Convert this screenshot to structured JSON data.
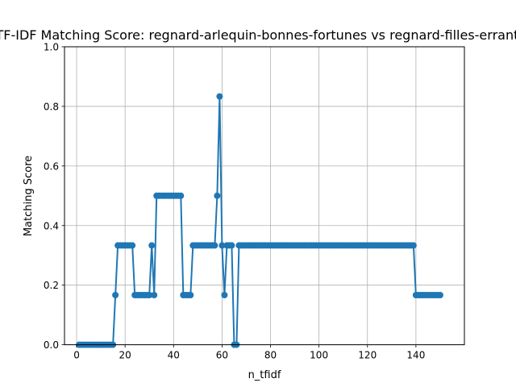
{
  "chart_data": {
    "type": "line",
    "title": "TF-IDF Matching Score: regnard-arlequin-bonnes-fortunes vs regnard-filles-errantes",
    "xlabel": "n_tfidf",
    "ylabel": "Matching Score",
    "xlim": [
      -5,
      160
    ],
    "ylim": [
      0,
      1
    ],
    "xticks": [
      0,
      20,
      40,
      60,
      80,
      100,
      120,
      140
    ],
    "yticks": [
      0.0,
      0.2,
      0.4,
      0.6,
      0.8,
      1.0
    ],
    "xtick_labels": [
      "0",
      "20",
      "40",
      "60",
      "80",
      "100",
      "120",
      "140"
    ],
    "ytick_labels": [
      "0.0",
      "0.2",
      "0.4",
      "0.6",
      "0.8",
      "1.0"
    ],
    "grid": true,
    "line_color": "#1f77b4",
    "marker": "circle",
    "series": [
      {
        "x": [
          1,
          2,
          3,
          4,
          5,
          6,
          7,
          8,
          9,
          10,
          11,
          12,
          13,
          14,
          15,
          16,
          17,
          18,
          19,
          20,
          21,
          22,
          23,
          24,
          25,
          26,
          27,
          28,
          29,
          30,
          31,
          32,
          33,
          34,
          35,
          36,
          37,
          38,
          39,
          40,
          41,
          42,
          43,
          44,
          45,
          46,
          47,
          48,
          49,
          50,
          51,
          52,
          53,
          54,
          55,
          56,
          57,
          58,
          59,
          60,
          61,
          62,
          63,
          64,
          65,
          66,
          67,
          68,
          69,
          70,
          71,
          72,
          73,
          74,
          75,
          76,
          77,
          78,
          79,
          80,
          81,
          82,
          83,
          84,
          85,
          86,
          87,
          88,
          89,
          90,
          91,
          92,
          93,
          94,
          95,
          96,
          97,
          98,
          99,
          100,
          101,
          102,
          103,
          104,
          105,
          106,
          107,
          108,
          109,
          110,
          111,
          112,
          113,
          114,
          115,
          116,
          117,
          118,
          119,
          120,
          121,
          122,
          123,
          124,
          125,
          126,
          127,
          128,
          129,
          130,
          131,
          132,
          133,
          134,
          135,
          136,
          137,
          138,
          139,
          140,
          141,
          142,
          143,
          144,
          145,
          146,
          147,
          148,
          149,
          150
        ],
        "y": [
          0,
          0,
          0,
          0,
          0,
          0,
          0,
          0,
          0,
          0,
          0,
          0,
          0,
          0,
          0,
          0.1667,
          0.3333,
          0.3333,
          0.3333,
          0.3333,
          0.3333,
          0.3333,
          0.3333,
          0.1667,
          0.1667,
          0.1667,
          0.1667,
          0.1667,
          0.1667,
          0.1667,
          0.3333,
          0.1667,
          0.5,
          0.5,
          0.5,
          0.5,
          0.5,
          0.5,
          0.5,
          0.5,
          0.5,
          0.5,
          0.5,
          0.1667,
          0.1667,
          0.1667,
          0.1667,
          0.3333,
          0.3333,
          0.3333,
          0.3333,
          0.3333,
          0.3333,
          0.3333,
          0.3333,
          0.3333,
          0.3333,
          0.5,
          0.8333,
          0.3333,
          0.1667,
          0.3333,
          0.3333,
          0.3333,
          0,
          0,
          0.3333,
          0.3333,
          0.3333,
          0.3333,
          0.3333,
          0.3333,
          0.3333,
          0.3333,
          0.3333,
          0.3333,
          0.3333,
          0.3333,
          0.3333,
          0.3333,
          0.3333,
          0.3333,
          0.3333,
          0.3333,
          0.3333,
          0.3333,
          0.3333,
          0.3333,
          0.3333,
          0.3333,
          0.3333,
          0.3333,
          0.3333,
          0.3333,
          0.3333,
          0.3333,
          0.3333,
          0.3333,
          0.3333,
          0.3333,
          0.3333,
          0.3333,
          0.3333,
          0.3333,
          0.3333,
          0.3333,
          0.3333,
          0.3333,
          0.3333,
          0.3333,
          0.3333,
          0.3333,
          0.3333,
          0.3333,
          0.3333,
          0.3333,
          0.3333,
          0.3333,
          0.3333,
          0.3333,
          0.3333,
          0.3333,
          0.3333,
          0.3333,
          0.3333,
          0.3333,
          0.3333,
          0.3333,
          0.3333,
          0.3333,
          0.3333,
          0.3333,
          0.3333,
          0.3333,
          0.3333,
          0.3333,
          0.3333,
          0.3333,
          0.3333,
          0.1667,
          0.1667,
          0.1667,
          0.1667,
          0.1667,
          0.1667,
          0.1667,
          0.1667,
          0.1667,
          0.1667,
          0.1667
        ]
      }
    ]
  }
}
